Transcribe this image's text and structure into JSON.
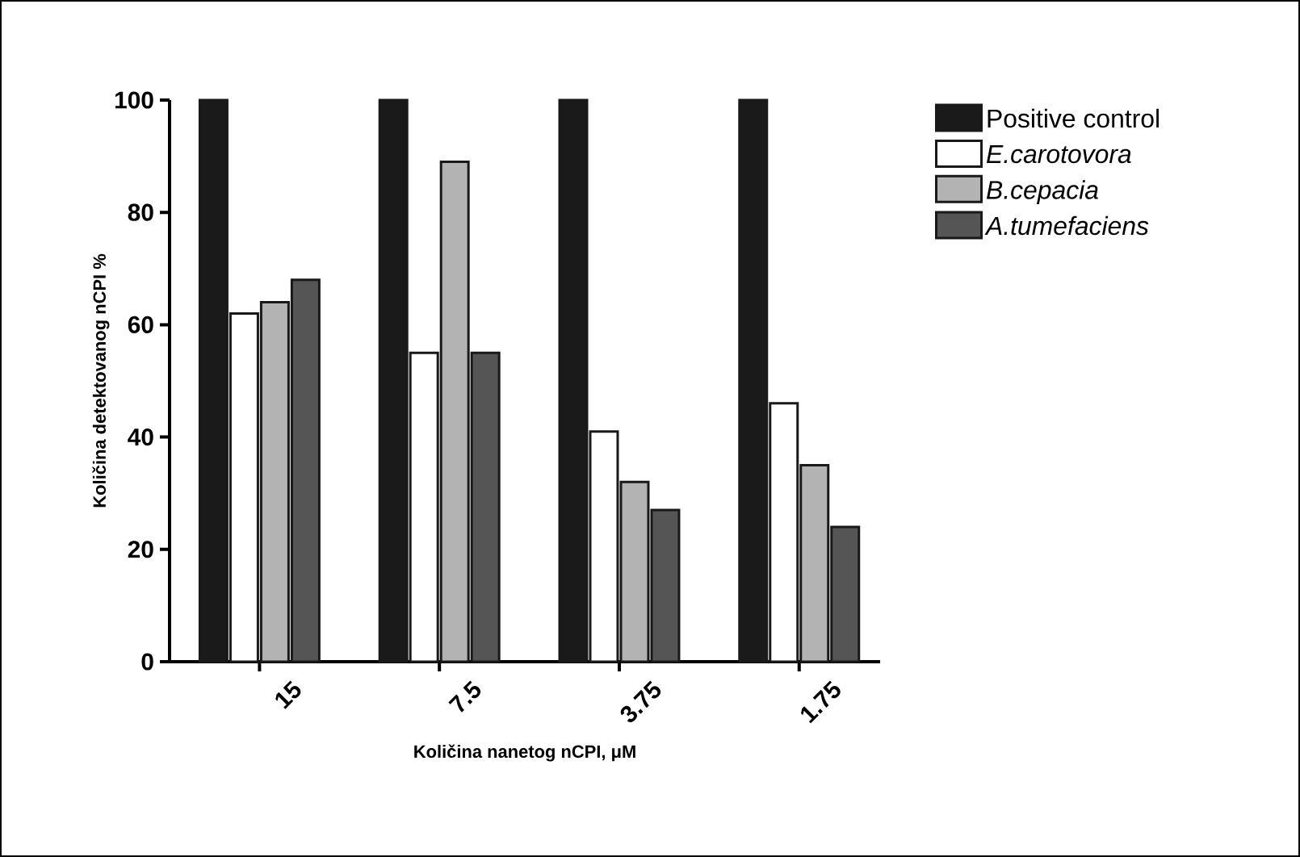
{
  "chart_data": {
    "type": "bar",
    "xlabel": "Količina nanetog nCPI, μM",
    "ylabel": "Količina detektovanog nCPI %",
    "categories": [
      "15",
      "7.5",
      "3.75",
      "1.75"
    ],
    "ylim": [
      0,
      100
    ],
    "yticks": [
      0,
      20,
      40,
      60,
      80,
      100
    ],
    "legend": "right",
    "grid": false,
    "series": [
      {
        "name": "Positive control",
        "color": "#1a1a1a",
        "values": [
          100,
          100,
          100,
          100
        ]
      },
      {
        "name": "E.carotovora",
        "color": "#ffffff",
        "values": [
          62,
          55,
          41,
          46
        ]
      },
      {
        "name": "B.cepacia",
        "color": "#b3b3b3",
        "values": [
          64,
          89,
          32,
          35
        ]
      },
      {
        "name": "A.tumefaciens",
        "color": "#555555",
        "values": [
          68,
          55,
          27,
          24
        ]
      }
    ]
  }
}
